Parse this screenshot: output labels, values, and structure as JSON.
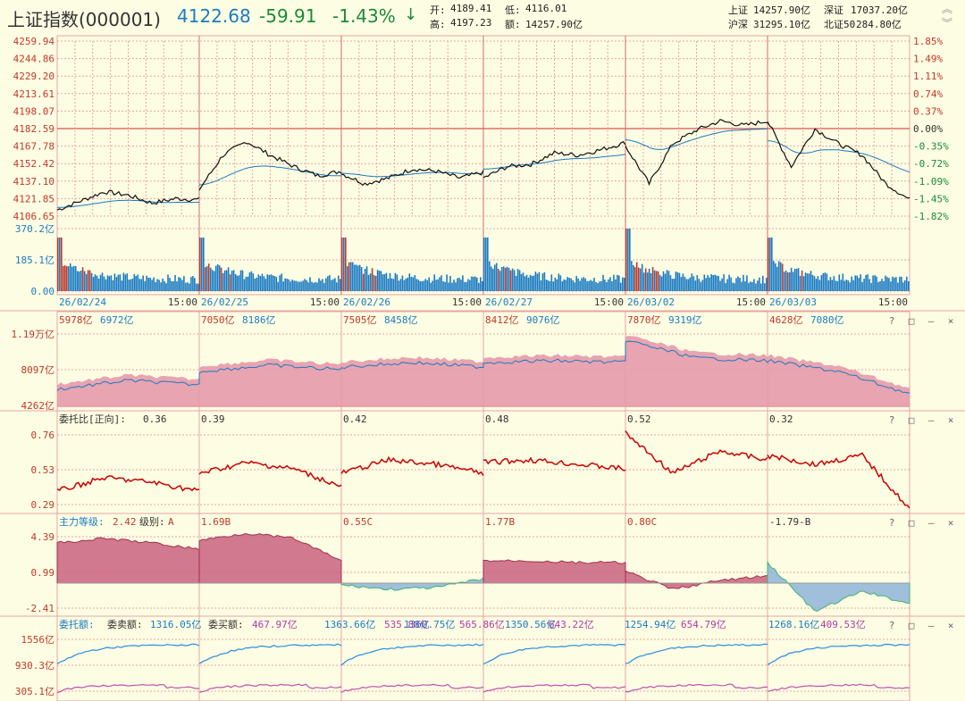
{
  "header": {
    "title": "上证指数(000001)",
    "price": "4122.68",
    "change": "-59.91",
    "change_pct": "-1.43%",
    "arrow": "↓",
    "open_label": "开:",
    "open": "4189.41",
    "low_label": "低:",
    "low": "4116.01",
    "high_label": "高:",
    "high": "4197.23",
    "amount_label": "额:",
    "amount": "14257.90亿",
    "sh_label": "上证",
    "sh": "14257.90亿",
    "sz_label": "深证",
    "sz": "17037.20亿",
    "hs_label": "沪深",
    "hs": "31295.10亿",
    "bz_label": "北证50",
    "bz": "284.80亿"
  },
  "colors": {
    "bg": "#fdfde3",
    "grid": "#e7a5a5",
    "up": "#c0392b",
    "down": "#1a8a3c",
    "blue": "#1a7bc4"
  },
  "dates": [
    "26/02/24",
    "26/02/25",
    "26/02/26",
    "26/02/27",
    "26/03/02",
    "26/03/03"
  ],
  "time_label": "15:00",
  "price_panel": {
    "left_ticks": [
      "4259.94",
      "4244.86",
      "4229.20",
      "4213.61",
      "4198.07",
      "4182.59",
      "4167.78",
      "4152.42",
      "4137.10",
      "4121.85",
      "4106.65"
    ],
    "right_ticks": [
      "1.85%",
      "1.49%",
      "1.11%",
      "0.74%",
      "0.37%",
      "0.00%",
      "-0.35%",
      "-0.72%",
      "-1.09%",
      "-1.45%",
      "-1.82%"
    ],
    "vol_ticks": [
      "370.2亿",
      "185.1亿",
      "0.00"
    ]
  },
  "panel2": {
    "labels": [
      [
        "5978亿",
        "6972亿"
      ],
      [
        "7050亿",
        "8186亿"
      ],
      [
        "7505亿",
        "8458亿"
      ],
      [
        "8412亿",
        "9076亿"
      ],
      [
        "7870亿",
        "9319亿"
      ],
      [
        "4628亿",
        "7080亿"
      ]
    ],
    "ticks": [
      "1.19万亿",
      "8097亿",
      "4262亿"
    ]
  },
  "panel3": {
    "title": "委托比[正向]:",
    "values": [
      "0.36",
      "0.39",
      "0.42",
      "0.48",
      "0.52",
      "0.32"
    ],
    "ticks": [
      "0.76",
      "0.53",
      "0.29"
    ]
  },
  "panel4": {
    "title": "主力等级:",
    "first_value": "2.42",
    "level_label": "级别:",
    "first_level": "A",
    "entries": [
      "1.69B",
      "0.55C",
      "1.77B",
      "0.80C",
      "-1.79-B"
    ],
    "ticks": [
      "4.39",
      "0.99",
      "-2.41"
    ]
  },
  "panel5": {
    "title": "委托额:",
    "sell_label": "委卖额:",
    "buy_label": "委买额:",
    "pairs": [
      [
        "1316.05亿",
        "467.97亿"
      ],
      [
        "1363.66亿",
        "535.88亿"
      ],
      [
        "1360.75亿",
        "565.86亿"
      ],
      [
        "1350.56亿",
        "643.22亿"
      ],
      [
        "1254.94亿",
        "654.79亿"
      ],
      [
        "1268.16亿",
        "409.53亿"
      ]
    ],
    "ticks": [
      "1556亿",
      "930.3亿",
      "305.1亿"
    ]
  },
  "icons": {
    "help": "?",
    "restore": "□",
    "minimize": "–",
    "close": "×"
  }
}
